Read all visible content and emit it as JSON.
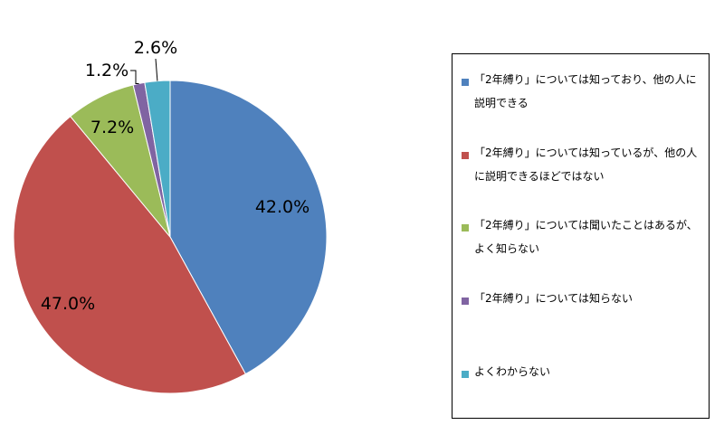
{
  "chart_data": {
    "type": "pie",
    "title": "",
    "start_angle_deg": 0,
    "direction": "clockwise",
    "legend_position": "right",
    "slices": [
      {
        "label": "「2年縛り」については知っており、他の人に説明できる",
        "value": 42.0,
        "display": "42.0%",
        "color": "#4f81bd"
      },
      {
        "label": "「2年縛り」については知っているが、他の人に説明できるほどではない",
        "value": 47.0,
        "display": "47.0%",
        "color": "#c0504d"
      },
      {
        "label": "「2年縛り」については聞いたことはあるが、よく知らない",
        "value": 7.2,
        "display": "7.2%",
        "color": "#9bbb59"
      },
      {
        "label": "「2年縛り」については知らない",
        "value": 1.2,
        "display": "1.2%",
        "color": "#8064a2"
      },
      {
        "label": "よくわからない",
        "value": 2.6,
        "display": "2.6%",
        "color": "#4bacc6"
      }
    ]
  }
}
